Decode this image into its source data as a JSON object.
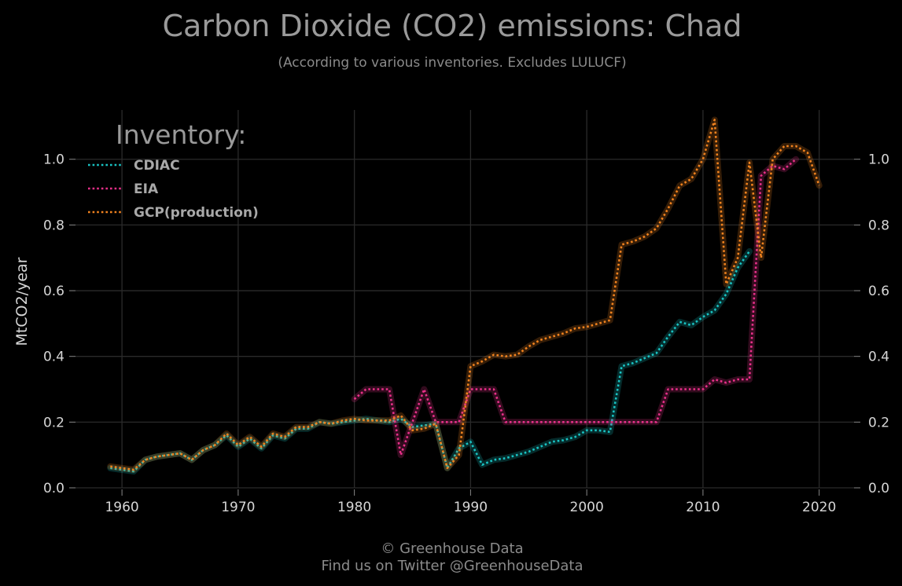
{
  "title": "Carbon Dioxide (CO2) emissions: Chad",
  "subtitle": "(According to various inventories. Excludes LULUCF)",
  "footer": {
    "line1": "© Greenhouse Data",
    "line2": "Find us on Twitter @GreenhouseData"
  },
  "legend": {
    "title": "Inventory:",
    "placement": "top-left"
  },
  "chart_data": {
    "type": "line",
    "title": "Carbon Dioxide (CO2) emissions: Chad",
    "subtitle": "(According to various inventories. Excludes LULUCF)",
    "ylabel": "MtCO2/year",
    "xlim": [
      1956,
      2023
    ],
    "ylim": [
      0.0,
      1.15
    ],
    "xticks": [
      "1960",
      "1970",
      "1980",
      "1990",
      "2000",
      "2010",
      "2020"
    ],
    "yticks": [
      "0.0",
      "0.2",
      "0.4",
      "0.6",
      "0.8",
      "1.0"
    ],
    "grid": true,
    "line_style": "dotted",
    "series": [
      {
        "name": "CDIAC",
        "color": "#19c3c3",
        "x": [
          1959,
          1960,
          1961,
          1962,
          1963,
          1964,
          1965,
          1966,
          1967,
          1968,
          1969,
          1970,
          1971,
          1972,
          1973,
          1974,
          1975,
          1976,
          1977,
          1978,
          1979,
          1980,
          1981,
          1982,
          1983,
          1984,
          1985,
          1986,
          1987,
          1988,
          1989,
          1990,
          1991,
          1992,
          1993,
          1994,
          1995,
          1996,
          1997,
          1998,
          1999,
          2000,
          2001,
          2002,
          2003,
          2004,
          2005,
          2006,
          2007,
          2008,
          2009,
          2010,
          2011,
          2012,
          2013,
          2014
        ],
        "y": [
          0.06,
          0.055,
          0.05,
          0.085,
          0.095,
          0.1,
          0.105,
          0.085,
          0.115,
          0.13,
          0.16,
          0.125,
          0.15,
          0.12,
          0.16,
          0.15,
          0.18,
          0.18,
          0.2,
          0.195,
          0.2,
          0.205,
          0.21,
          0.205,
          0.2,
          0.21,
          0.185,
          0.19,
          0.195,
          0.06,
          0.12,
          0.14,
          0.07,
          0.085,
          0.09,
          0.1,
          0.11,
          0.125,
          0.14,
          0.145,
          0.155,
          0.175,
          0.175,
          0.17,
          0.37,
          0.38,
          0.395,
          0.41,
          0.46,
          0.505,
          0.495,
          0.52,
          0.54,
          0.59,
          0.67,
          0.72
        ]
      },
      {
        "name": "EIA",
        "color": "#e8308a",
        "x": [
          1980,
          1981,
          1982,
          1983,
          1984,
          1985,
          1986,
          1987,
          1988,
          1989,
          1990,
          1991,
          1992,
          1993,
          1994,
          1995,
          1996,
          1997,
          1998,
          1999,
          2000,
          2001,
          2002,
          2003,
          2004,
          2005,
          2006,
          2007,
          2008,
          2009,
          2010,
          2011,
          2012,
          2013,
          2014,
          2015,
          2016,
          2017,
          2018
        ],
        "y": [
          0.27,
          0.3,
          0.3,
          0.3,
          0.1,
          0.2,
          0.3,
          0.2,
          0.2,
          0.2,
          0.3,
          0.3,
          0.3,
          0.2,
          0.2,
          0.2,
          0.2,
          0.2,
          0.2,
          0.2,
          0.2,
          0.2,
          0.2,
          0.2,
          0.2,
          0.2,
          0.2,
          0.3,
          0.3,
          0.3,
          0.3,
          0.33,
          0.32,
          0.33,
          0.33,
          0.95,
          0.98,
          0.97,
          1.0
        ]
      },
      {
        "name": "GCP(production)",
        "color": "#f0821e",
        "x": [
          1959,
          1960,
          1961,
          1962,
          1963,
          1964,
          1965,
          1966,
          1967,
          1968,
          1969,
          1970,
          1971,
          1972,
          1973,
          1974,
          1975,
          1976,
          1977,
          1978,
          1979,
          1980,
          1981,
          1982,
          1983,
          1984,
          1985,
          1986,
          1987,
          1988,
          1989,
          1990,
          1991,
          1992,
          1993,
          1994,
          1995,
          1996,
          1997,
          1998,
          1999,
          2000,
          2001,
          2002,
          2003,
          2004,
          2005,
          2006,
          2007,
          2008,
          2009,
          2010,
          2011,
          2012,
          2013,
          2014,
          2015,
          2016,
          2017,
          2018,
          2019,
          2020
        ],
        "y": [
          0.065,
          0.06,
          0.055,
          0.085,
          0.095,
          0.1,
          0.105,
          0.085,
          0.115,
          0.13,
          0.165,
          0.13,
          0.155,
          0.125,
          0.165,
          0.155,
          0.185,
          0.185,
          0.2,
          0.195,
          0.205,
          0.21,
          0.205,
          0.205,
          0.205,
          0.22,
          0.175,
          0.18,
          0.195,
          0.06,
          0.1,
          0.37,
          0.385,
          0.405,
          0.4,
          0.405,
          0.43,
          0.45,
          0.46,
          0.47,
          0.485,
          0.49,
          0.5,
          0.51,
          0.74,
          0.75,
          0.765,
          0.79,
          0.85,
          0.92,
          0.94,
          1.0,
          1.12,
          0.62,
          0.7,
          0.99,
          0.7,
          1.0,
          1.04,
          1.04,
          1.02,
          0.92
        ]
      }
    ]
  }
}
